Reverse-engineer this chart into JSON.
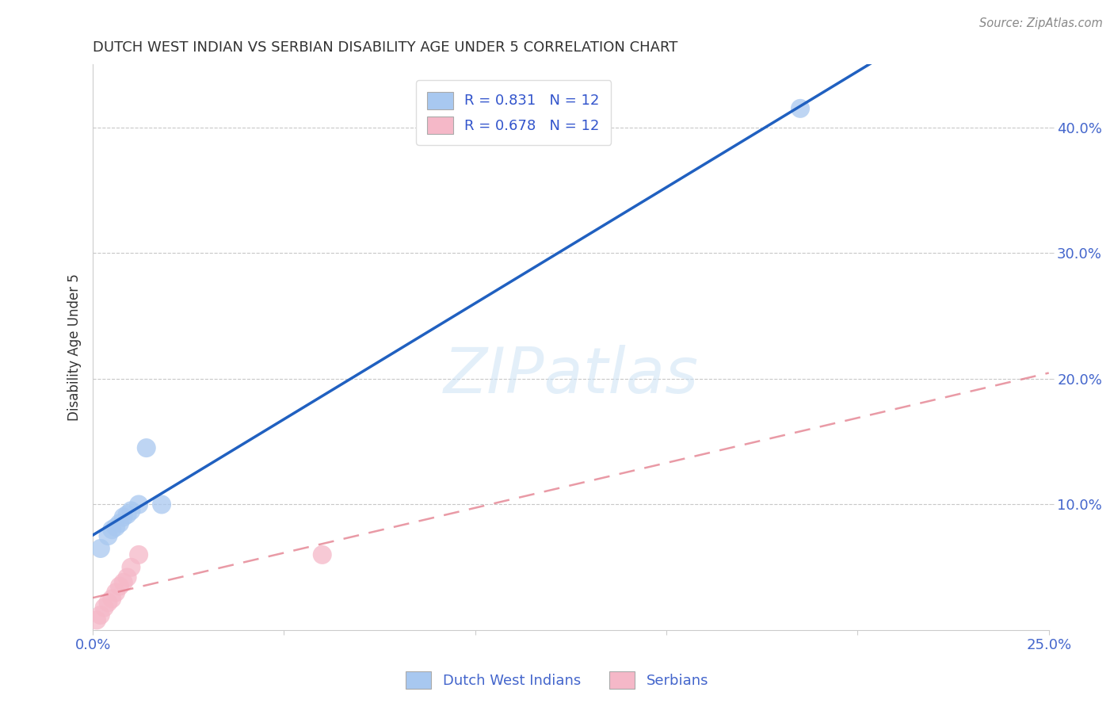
{
  "title": "DUTCH WEST INDIAN VS SERBIAN DISABILITY AGE UNDER 5 CORRELATION CHART",
  "source": "Source: ZipAtlas.com",
  "ylabel": "Disability Age Under 5",
  "xlabel": "",
  "xlim": [
    0.0,
    0.25
  ],
  "ylim": [
    0.0,
    0.45
  ],
  "xticks": [
    0.0,
    0.05,
    0.1,
    0.15,
    0.2,
    0.25
  ],
  "xticklabels": [
    "0.0%",
    "",
    "",
    "",
    "",
    "25.0%"
  ],
  "yticks": [
    0.1,
    0.2,
    0.3,
    0.4
  ],
  "yticklabels": [
    "10.0%",
    "20.0%",
    "30.0%",
    "40.0%"
  ],
  "grid_yticks": [
    0.1,
    0.2,
    0.3,
    0.4
  ],
  "dutch_x": [
    0.002,
    0.004,
    0.005,
    0.006,
    0.007,
    0.008,
    0.009,
    0.01,
    0.012,
    0.014,
    0.018,
    0.185
  ],
  "dutch_y": [
    0.065,
    0.075,
    0.08,
    0.082,
    0.085,
    0.09,
    0.092,
    0.095,
    0.1,
    0.145,
    0.1,
    0.415
  ],
  "serbian_x": [
    0.001,
    0.002,
    0.003,
    0.004,
    0.005,
    0.006,
    0.007,
    0.008,
    0.009,
    0.01,
    0.012,
    0.06
  ],
  "serbian_y": [
    0.008,
    0.012,
    0.018,
    0.022,
    0.025,
    0.03,
    0.035,
    0.038,
    0.042,
    0.05,
    0.06,
    0.06
  ],
  "dutch_R": 0.831,
  "dutch_N": 12,
  "serbian_R": 0.678,
  "serbian_N": 12,
  "dutch_color": "#A8C8F0",
  "serbian_color": "#F5B8C8",
  "dutch_line_color": "#2060C0",
  "serbian_line_color": "#E07080",
  "watermark": "ZIPatlas",
  "background_color": "#FFFFFF",
  "legend_color": "#3355CC",
  "tick_color": "#4466CC",
  "title_color": "#333333",
  "legend_label_dutch": "Dutch West Indians",
  "legend_label_serbian": "Serbians"
}
